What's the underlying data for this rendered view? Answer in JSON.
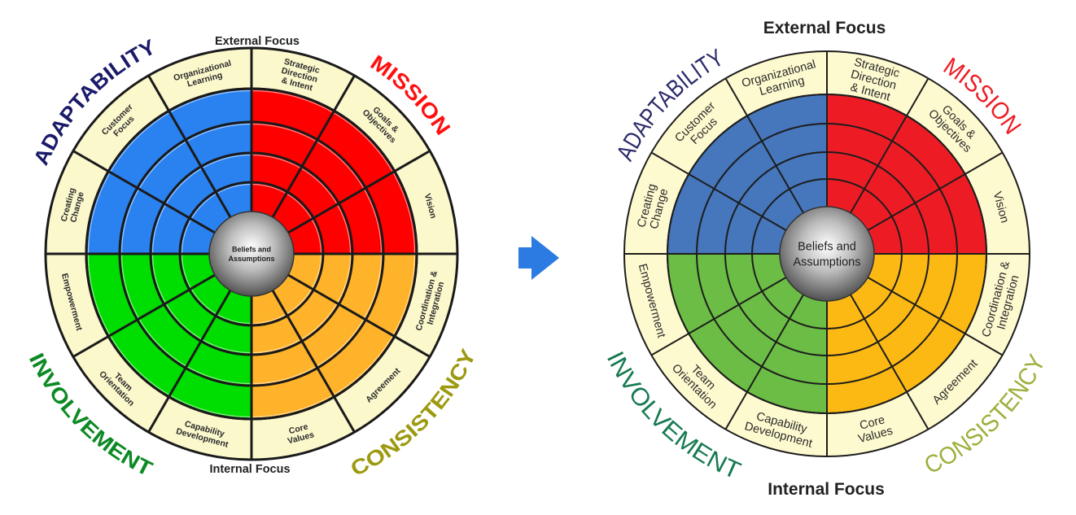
{
  "wheels": [
    {
      "id": "before",
      "external_focus": "External Focus",
      "internal_focus": "Internal Focus",
      "center": [
        "Beliefs and",
        "Assumptions"
      ],
      "quadrants": {
        "adaptability": "ADAPTABILITY",
        "mission": "MISSION",
        "involvement": "INVOLVEMENT",
        "consistency": "CONSISTENCY"
      },
      "sectors": [
        [
          "Strategic",
          "Direction",
          "& Intent"
        ],
        [
          "Goals &",
          "Objectives"
        ],
        [
          "Vision"
        ],
        [
          "Coordination &",
          "Integration"
        ],
        [
          "Agreement"
        ],
        [
          "Core",
          "Values"
        ],
        [
          "Capability",
          "Development"
        ],
        [
          "Team",
          "Orientation"
        ],
        [
          "Empowerment"
        ],
        [
          "Creating",
          "Change"
        ],
        [
          "Customer",
          "Focus"
        ],
        [
          "Organizational",
          "Learning"
        ]
      ],
      "colors": {
        "mission": "#ff0000",
        "consistency": "#ffb32a",
        "involvement": "#00dd00",
        "adaptability": "#2a82f0",
        "band": "#fbf8cc",
        "mission_label": "#ff1010",
        "consistency_label": "#9c9a10",
        "involvement_label": "#0c8a24",
        "adaptability_label": "#1b1a6a"
      }
    },
    {
      "id": "after",
      "external_focus": "External Focus",
      "internal_focus": "Internal Focus",
      "center": [
        "Beliefs and",
        "Assumptions"
      ],
      "quadrants": {
        "adaptability": "ADAPTABILITY",
        "mission": "MISSION",
        "involvement": "INVOLVEMENT",
        "consistency": "CONSISTENCY"
      },
      "sectors": [
        [
          "Strategic",
          "Direction",
          "& Intent"
        ],
        [
          "Goals &",
          "Objectives"
        ],
        [
          "Vision"
        ],
        [
          "Coordination &",
          "Integration"
        ],
        [
          "Agreement"
        ],
        [
          "Core",
          "Values"
        ],
        [
          "Capability",
          "Development"
        ],
        [
          "Team",
          "Orientation"
        ],
        [
          "Empowerment"
        ],
        [
          "Creating",
          "Change"
        ],
        [
          "Customer",
          "Focus"
        ],
        [
          "Organizational",
          "Learning"
        ]
      ],
      "colors": {
        "mission": "#ed1c24",
        "consistency": "#fcb913",
        "involvement": "#6cbd45",
        "adaptability": "#4676bb",
        "band": "#fefacf",
        "mission_label": "#ed1c24",
        "consistency_label": "#9bb13c",
        "involvement_label": "#167a50",
        "adaptability_label": "#2b2a6b"
      }
    }
  ],
  "arrow": {
    "icon": "arrow-right-icon",
    "color": "#2b7be3"
  }
}
